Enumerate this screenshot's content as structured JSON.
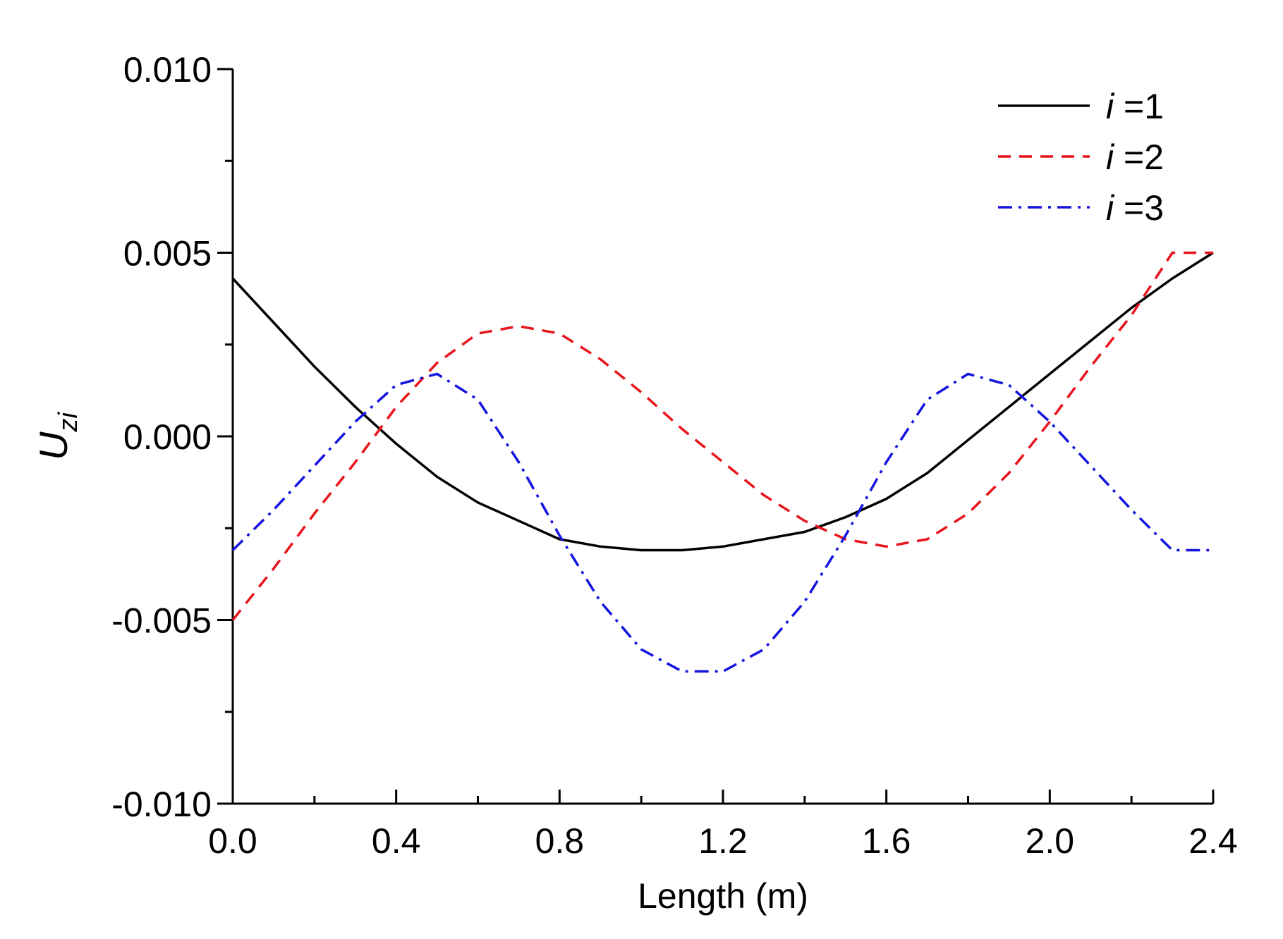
{
  "chart_data": {
    "type": "line",
    "title": "",
    "xlabel": "Length (m)",
    "ylabel_main": "U",
    "ylabel_sub": "zi",
    "xlim": [
      0.0,
      2.4
    ],
    "ylim": [
      -0.01,
      0.01
    ],
    "x_major_ticks": [
      0.0,
      0.4,
      0.8,
      1.2,
      1.6,
      2.0,
      2.4
    ],
    "x_tick_labels": [
      "0.0",
      "0.4",
      "0.8",
      "1.2",
      "1.6",
      "2.0",
      "2.4"
    ],
    "x_minor_ticks": [
      0.2,
      0.6,
      1.0,
      1.4,
      1.8,
      2.2
    ],
    "y_major_ticks": [
      -0.01,
      -0.005,
      0.0,
      0.005,
      0.01
    ],
    "y_tick_labels": [
      "-0.010",
      "-0.005",
      "0.000",
      "0.005",
      "0.010"
    ],
    "y_minor_ticks": [
      -0.0075,
      -0.0025,
      0.0025,
      0.0075
    ],
    "grid": false,
    "legend_position": "top-right",
    "series": [
      {
        "name_italic": "i",
        "name_rest": " =1",
        "color": "#000000",
        "dash": "solid",
        "x": [
          0.0,
          0.1,
          0.2,
          0.3,
          0.4,
          0.5,
          0.6,
          0.7,
          0.8,
          0.9,
          1.0,
          1.1,
          1.2,
          1.3,
          1.4,
          1.5,
          1.6,
          1.7,
          1.8,
          1.9,
          2.0,
          2.1,
          2.2,
          2.3,
          2.4
        ],
        "y": [
          0.0043,
          0.0031,
          0.0019,
          0.0008,
          -0.0002,
          -0.0011,
          -0.0018,
          -0.0023,
          -0.0028,
          -0.003,
          -0.0031,
          -0.0031,
          -0.003,
          -0.0028,
          -0.0026,
          -0.0022,
          -0.0017,
          -0.001,
          -0.0001,
          0.0008,
          0.0017,
          0.0026,
          0.0035,
          0.0043,
          0.005
        ]
      },
      {
        "name_italic": "i",
        "name_rest": " =2",
        "color": "#e8141c",
        "dash": "dashed",
        "x": [
          0.0,
          0.1,
          0.2,
          0.3,
          0.4,
          0.5,
          0.6,
          0.7,
          0.8,
          0.9,
          1.0,
          1.1,
          1.2,
          1.3,
          1.4,
          1.5,
          1.6,
          1.7,
          1.8,
          1.9,
          2.0,
          2.1,
          2.2,
          2.3,
          2.4
        ],
        "y": [
          -0.005,
          -0.0036,
          -0.0021,
          -0.0007,
          0.0008,
          0.002,
          0.0028,
          0.003,
          0.0028,
          0.0021,
          0.0012,
          0.0002,
          -0.0007,
          -0.0016,
          -0.0023,
          -0.0028,
          -0.003,
          -0.0028,
          -0.0021,
          -0.001,
          0.0004,
          0.0019,
          0.0033,
          0.005,
          0.005
        ]
      },
      {
        "name_italic": "i",
        "name_rest": " =3",
        "color": "#1414e0",
        "dash": "dashdot",
        "x": [
          0.0,
          0.1,
          0.2,
          0.3,
          0.4,
          0.5,
          0.6,
          0.7,
          0.8,
          0.9,
          1.0,
          1.1,
          1.2,
          1.3,
          1.4,
          1.5,
          1.6,
          1.7,
          1.8,
          1.9,
          2.0,
          2.1,
          2.2,
          2.3,
          2.4
        ],
        "y": [
          -0.0031,
          -0.002,
          -0.0008,
          0.0004,
          0.0014,
          0.0017,
          0.001,
          -0.0007,
          -0.0027,
          -0.0045,
          -0.0058,
          -0.0064,
          -0.0064,
          -0.0058,
          -0.0045,
          -0.0027,
          -0.0007,
          0.001,
          0.0017,
          0.0014,
          0.0004,
          -0.0008,
          -0.002,
          -0.0031,
          -0.0031
        ]
      }
    ]
  }
}
